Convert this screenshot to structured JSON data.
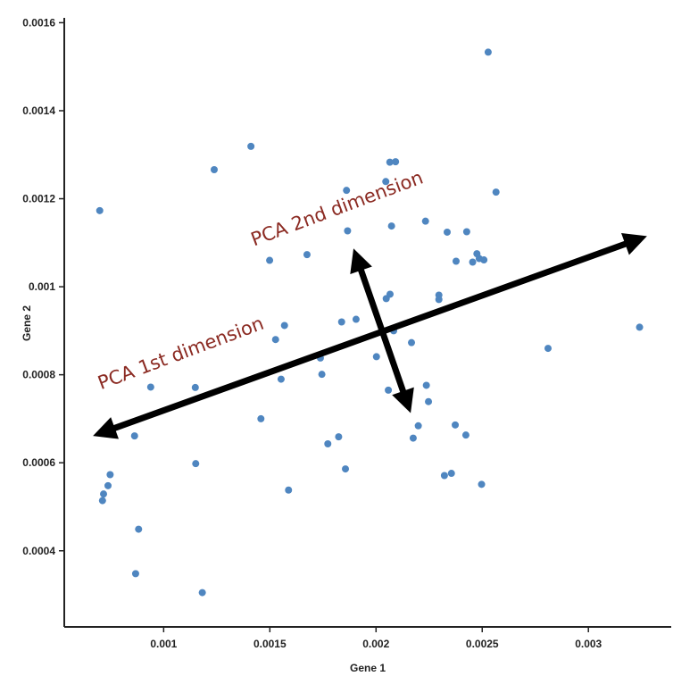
{
  "chart_data": {
    "type": "scatter",
    "title": "",
    "xlabel": "Gene 1",
    "ylabel": "Gene 2",
    "xlim": [
      0.000532,
      0.00339
    ],
    "ylim": [
      0.000227,
      0.001611
    ],
    "xticks": [
      0.001,
      0.0015,
      0.002,
      0.0025,
      0.003
    ],
    "xtick_labels": [
      "0.001",
      "0.0015",
      "0.002",
      "0.0025",
      "0.003"
    ],
    "yticks": [
      0.0004,
      0.0006,
      0.0008,
      0.001,
      0.0012,
      0.0014,
      0.0016
    ],
    "ytick_labels": [
      "0.0004",
      "0.0006",
      "0.0008",
      "0.001",
      "0.0012",
      "0.0014",
      "0.0016"
    ],
    "grid": false,
    "colors": {
      "points": "#4f86c0",
      "annotation_text": "#8b2a22",
      "arrows": "#000000",
      "axes": "#222222"
    },
    "points": [
      [
        0.000699,
        0.001173
      ],
      [
        0.001238,
        0.001266
      ],
      [
        0.001411,
        0.001319
      ],
      [
        0.001861,
        0.001219
      ],
      [
        0.002065,
        0.001283
      ],
      [
        0.002092,
        0.001284
      ],
      [
        0.002046,
        0.001239
      ],
      [
        0.001866,
        0.001127
      ],
      [
        0.001675,
        0.001073
      ],
      [
        0.001499,
        0.00106
      ],
      [
        0.002073,
        0.001138
      ],
      [
        0.002048,
        0.000973
      ],
      [
        0.002066,
        0.000983
      ],
      [
        0.002528,
        0.001533
      ],
      [
        0.002565,
        0.001215
      ],
      [
        0.002233,
        0.001149
      ],
      [
        0.002335,
        0.001124
      ],
      [
        0.002427,
        0.001125
      ],
      [
        0.002475,
        0.001075
      ],
      [
        0.002486,
        0.001064
      ],
      [
        0.002508,
        0.001061
      ],
      [
        0.002455,
        0.001056
      ],
      [
        0.002377,
        0.001058
      ],
      [
        0.002296,
        0.000981
      ],
      [
        0.002296,
        0.000971
      ],
      [
        0.001906,
        0.000926
      ],
      [
        0.001838,
        0.00092
      ],
      [
        0.001569,
        0.000912
      ],
      [
        0.001527,
        0.00088
      ],
      [
        0.001738,
        0.000838
      ],
      [
        0.001745,
        0.000801
      ],
      [
        0.002002,
        0.000841
      ],
      [
        0.002058,
        0.000765
      ],
      [
        0.001553,
        0.00079
      ],
      [
        0.000939,
        0.000772
      ],
      [
        0.001149,
        0.000771
      ],
      [
        0.001458,
        0.0007
      ],
      [
        0.000863,
        0.000661
      ],
      [
        0.000759,
        0.00067
      ],
      [
        0.001824,
        0.000659
      ],
      [
        0.001773,
        0.000643
      ],
      [
        0.001151,
        0.000598
      ],
      [
        0.001856,
        0.000586
      ],
      [
        0.000748,
        0.000573
      ],
      [
        0.000738,
        0.000548
      ],
      [
        0.000717,
        0.000529
      ],
      [
        0.000712,
        0.000514
      ],
      [
        0.001588,
        0.000538
      ],
      [
        0.000882,
        0.000449
      ],
      [
        0.000868,
        0.000348
      ],
      [
        0.001182,
        0.000305
      ],
      [
        0.002083,
        0.0009
      ],
      [
        0.002167,
        0.000873
      ],
      [
        0.002237,
        0.000776
      ],
      [
        0.002247,
        0.000739
      ],
      [
        0.002199,
        0.000684
      ],
      [
        0.002175,
        0.000656
      ],
      [
        0.002373,
        0.000686
      ],
      [
        0.002423,
        0.000663
      ],
      [
        0.002322,
        0.000571
      ],
      [
        0.002355,
        0.000576
      ],
      [
        0.002497,
        0.000551
      ],
      [
        0.00281,
        0.00086
      ],
      [
        0.003241,
        0.000908
      ]
    ],
    "annotations": [
      {
        "label": "PCA 1st dimension",
        "arrow_from": [
          0.000667,
          0.000661
        ],
        "arrow_to": [
          0.003276,
          0.001115
        ],
        "double_headed": true
      },
      {
        "label": "PCA 2nd dimension",
        "arrow_from": [
          0.001894,
          0.001087
        ],
        "arrow_to": [
          0.002163,
          0.000713
        ],
        "double_headed": true
      }
    ]
  }
}
